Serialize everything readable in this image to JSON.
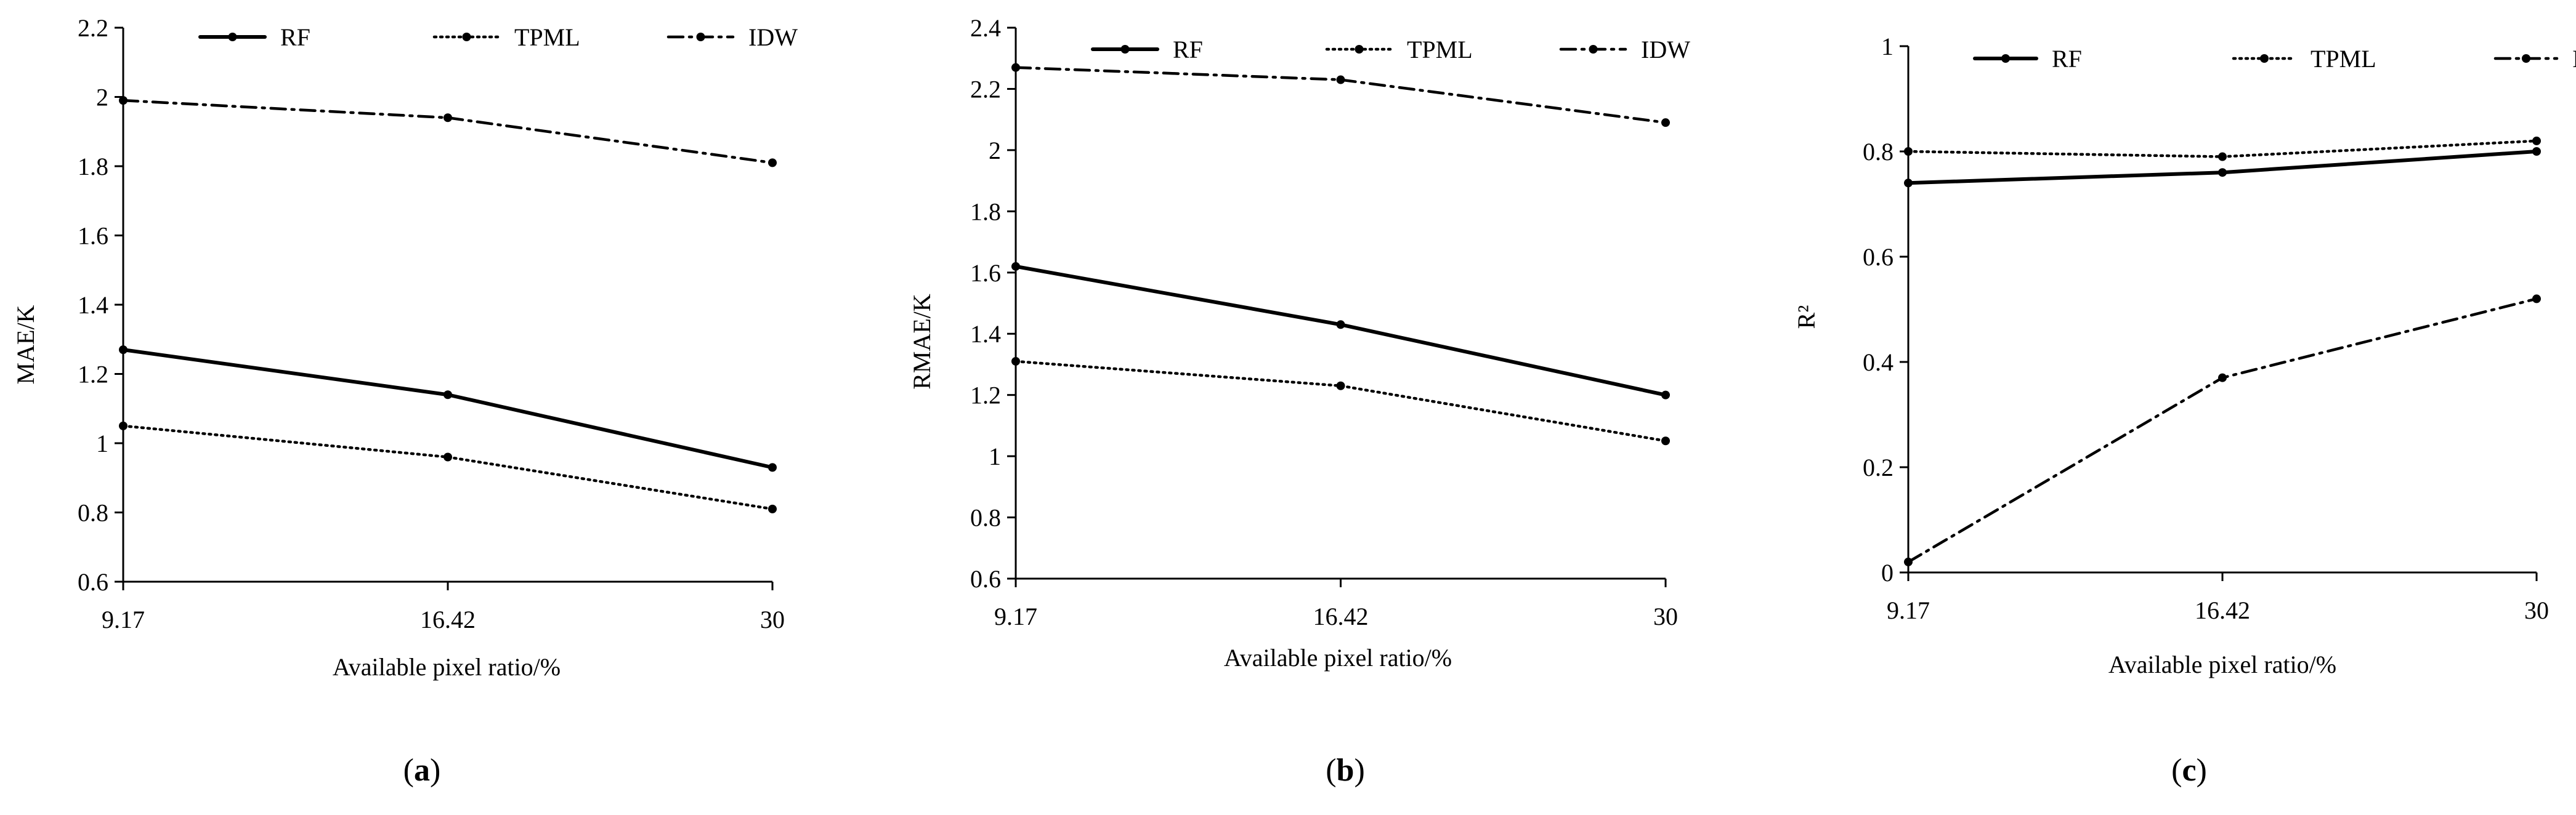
{
  "chart_data": [
    {
      "type": "line",
      "panel_label": "a",
      "title": "",
      "xlabel": "Available pixel ratio/%",
      "ylabel": "MAE/K",
      "categories": [
        "9.17",
        "16.42",
        "30"
      ],
      "ylim": [
        0.6,
        2.2
      ],
      "yticks": [
        "0.6",
        "0.8",
        "1",
        "1.2",
        "1.4",
        "1.6",
        "1.8",
        "2",
        "2.2"
      ],
      "legend_position": "top",
      "series": [
        {
          "name": "RF",
          "style": "solid",
          "values": [
            1.27,
            1.14,
            0.93
          ]
        },
        {
          "name": "TPML",
          "style": "dotted",
          "values": [
            1.05,
            0.96,
            0.81
          ]
        },
        {
          "name": "IDW",
          "style": "dashdot",
          "values": [
            1.99,
            1.94,
            1.81
          ]
        }
      ]
    },
    {
      "type": "line",
      "panel_label": "b",
      "title": "",
      "xlabel": "Available pixel ratio/%",
      "ylabel": "RMAE/K",
      "categories": [
        "9.17",
        "16.42",
        "30"
      ],
      "ylim": [
        0.6,
        2.4
      ],
      "yticks": [
        "0.6",
        "0.8",
        "1",
        "1.2",
        "1.4",
        "1.6",
        "1.8",
        "2",
        "2.2",
        "2.4"
      ],
      "legend_position": "top",
      "series": [
        {
          "name": "RF",
          "style": "solid",
          "values": [
            1.62,
            1.43,
            1.2
          ]
        },
        {
          "name": "TPML",
          "style": "dotted",
          "values": [
            1.31,
            1.23,
            1.05
          ]
        },
        {
          "name": "IDW",
          "style": "dashdot",
          "values": [
            2.27,
            2.23,
            2.09
          ]
        }
      ]
    },
    {
      "type": "line",
      "panel_label": "c",
      "title": "",
      "xlabel": "Available pixel ratio/%",
      "ylabel": "R²",
      "categories": [
        "9.17",
        "16.42",
        "30"
      ],
      "ylim": [
        0,
        1
      ],
      "yticks": [
        "0",
        "0.2",
        "0.4",
        "0.6",
        "0.8",
        "1"
      ],
      "legend_position": "top",
      "series": [
        {
          "name": "RF",
          "style": "solid",
          "values": [
            0.74,
            0.76,
            0.8
          ]
        },
        {
          "name": "TPML",
          "style": "dotted",
          "values": [
            0.8,
            0.79,
            0.82
          ]
        },
        {
          "name": "IDW",
          "style": "dashdot",
          "values": [
            0.02,
            0.37,
            0.52
          ]
        }
      ]
    }
  ],
  "colors": {
    "line": "#000000",
    "axis": "#000000",
    "background": "#ffffff"
  }
}
